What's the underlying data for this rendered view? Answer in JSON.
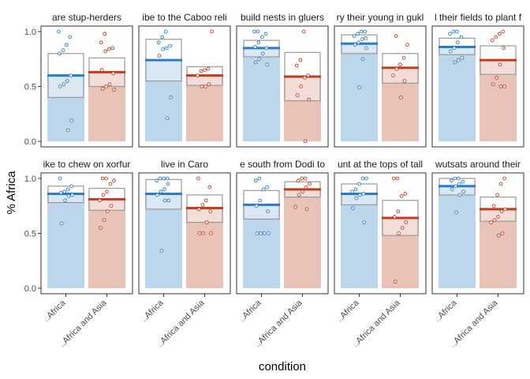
{
  "chart_data": {
    "type": "bar",
    "xlabel": "condition",
    "ylabel": "% Africa",
    "ylim": [
      0,
      1
    ],
    "y_ticks": [
      "0.0",
      "0.5",
      "1.0"
    ],
    "categories": [
      "..Africa",
      "..Africa and Asia"
    ],
    "colors": {
      "africa_fill": "#bcd6ec",
      "africa_line": "#2b7bca",
      "asia_fill": "#e9c2b8",
      "asia_line": "#c23b1c",
      "box_stroke": "#999999",
      "frame": "#333333"
    },
    "panels": [
      {
        "title": "are stup-herders",
        "series": [
          {
            "name": "..Africa",
            "mean": 0.6,
            "ci": [
              0.4,
              0.8
            ],
            "points": [
              1.0,
              0.95,
              0.88,
              0.83,
              0.8,
              0.6,
              0.55,
              0.52,
              0.5,
              0.19,
              0.1
            ]
          },
          {
            "name": "..Africa and Asia",
            "mean": 0.63,
            "ci": [
              0.5,
              0.76
            ],
            "points": [
              0.98,
              0.9,
              0.85,
              0.84,
              0.82,
              0.65,
              0.62,
              0.52,
              0.5,
              0.48,
              0.47
            ]
          }
        ]
      },
      {
        "title": "ibe to the Caboo reli",
        "series": [
          {
            "name": "..Africa",
            "mean": 0.74,
            "ci": [
              0.55,
              0.93
            ],
            "points": [
              1.0,
              0.95,
              0.9,
              0.87,
              0.85,
              0.84,
              0.78,
              0.4,
              0.21
            ]
          },
          {
            "name": "..Africa and Asia",
            "mean": 0.6,
            "ci": [
              0.51,
              0.68
            ],
            "points": [
              1.0,
              0.66,
              0.65,
              0.64,
              0.6,
              0.52,
              0.5,
              0.5
            ]
          }
        ]
      },
      {
        "title": "build nests in gluers",
        "series": [
          {
            "name": "..Africa",
            "mean": 0.85,
            "ci": [
              0.77,
              0.92
            ],
            "points": [
              1.0,
              1.0,
              0.98,
              0.95,
              0.9,
              0.86,
              0.85,
              0.8,
              0.75,
              0.72,
              0.7
            ]
          },
          {
            "name": "..Africa and Asia",
            "mean": 0.59,
            "ci": [
              0.37,
              0.81
            ],
            "points": [
              1.0,
              0.74,
              0.69,
              0.6,
              0.58,
              0.5,
              0.42,
              0.38,
              0.0
            ]
          }
        ]
      },
      {
        "title": "ry their young in gukl",
        "series": [
          {
            "name": "..Africa",
            "mean": 0.89,
            "ci": [
              0.8,
              0.97
            ],
            "points": [
              1.0,
              1.0,
              0.98,
              0.96,
              0.94,
              0.93,
              0.9,
              0.88,
              0.85,
              0.75,
              0.49
            ]
          },
          {
            "name": "..Africa and Asia",
            "mean": 0.67,
            "ci": [
              0.53,
              0.8
            ],
            "points": [
              0.96,
              0.88,
              0.76,
              0.7,
              0.66,
              0.6,
              0.55,
              0.4
            ]
          }
        ]
      },
      {
        "title": "l their fields to plant f",
        "series": [
          {
            "name": "..Africa",
            "mean": 0.86,
            "ci": [
              0.79,
              0.94
            ],
            "points": [
              1.0,
              1.0,
              0.98,
              0.95,
              0.9,
              0.85,
              0.82,
              0.76,
              0.74,
              0.72
            ]
          },
          {
            "name": "..Africa and Asia",
            "mean": 0.74,
            "ci": [
              0.61,
              0.87
            ],
            "points": [
              1.0,
              0.98,
              0.95,
              0.92,
              0.85,
              0.7,
              0.58,
              0.52,
              0.5,
              0.5
            ]
          }
        ]
      },
      {
        "title": "ike to chew on xorfur",
        "series": [
          {
            "name": "..Africa",
            "mean": 0.86,
            "ci": [
              0.78,
              0.93
            ],
            "points": [
              1.0,
              0.93,
              0.9,
              0.88,
              0.87,
              0.85,
              0.84,
              0.8,
              0.59
            ]
          },
          {
            "name": "..Africa and Asia",
            "mean": 0.81,
            "ci": [
              0.71,
              0.91
            ],
            "points": [
              1.0,
              1.0,
              0.98,
              0.95,
              0.88,
              0.85,
              0.8,
              0.75,
              0.7,
              0.62,
              0.55
            ]
          }
        ]
      },
      {
        "title": "live in Caro",
        "series": [
          {
            "name": "..Africa",
            "mean": 0.86,
            "ci": [
              0.72,
              0.99
            ],
            "points": [
              1.0,
              1.0,
              1.0,
              0.98,
              0.95,
              0.9,
              0.88,
              0.85,
              0.8,
              0.8,
              0.34
            ]
          },
          {
            "name": "..Africa and Asia",
            "mean": 0.73,
            "ci": [
              0.6,
              0.85
            ],
            "points": [
              1.0,
              0.92,
              0.8,
              0.76,
              0.72,
              0.7,
              0.6,
              0.5,
              0.5,
              0.5
            ]
          }
        ]
      },
      {
        "title": "e south from Dodi to",
        "series": [
          {
            "name": "..Africa",
            "mean": 0.76,
            "ci": [
              0.63,
              0.89
            ],
            "points": [
              1.0,
              0.98,
              0.92,
              0.9,
              0.8,
              0.75,
              0.7,
              0.5,
              0.5,
              0.5,
              0.5
            ]
          },
          {
            "name": "..Africa and Asia",
            "mean": 0.9,
            "ci": [
              0.83,
              0.97
            ],
            "points": [
              1.0,
              1.0,
              0.98,
              0.95,
              0.92,
              0.88,
              0.85,
              0.74,
              0.72
            ]
          }
        ]
      },
      {
        "title": "unt at the tops of tall",
        "series": [
          {
            "name": "..Africa",
            "mean": 0.86,
            "ci": [
              0.76,
              0.95
            ],
            "points": [
              1.0,
              1.0,
              0.95,
              0.9,
              0.88,
              0.86,
              0.85,
              0.82,
              0.73,
              0.6
            ]
          },
          {
            "name": "..Africa and Asia",
            "mean": 0.64,
            "ci": [
              0.48,
              0.8
            ],
            "points": [
              1.0,
              1.0,
              0.86,
              0.84,
              0.7,
              0.65,
              0.6,
              0.55,
              0.5,
              0.06
            ]
          }
        ]
      },
      {
        "title": "wutsats around their",
        "series": [
          {
            "name": "..Africa",
            "mean": 0.93,
            "ci": [
              0.85,
              1.0
            ],
            "points": [
              1.0,
              1.0,
              0.98,
              0.97,
              0.95,
              0.93,
              0.9,
              0.88,
              0.85,
              0.69
            ]
          },
          {
            "name": "..Africa and Asia",
            "mean": 0.72,
            "ci": [
              0.61,
              0.83
            ],
            "points": [
              1.0,
              0.95,
              0.85,
              0.75,
              0.72,
              0.7,
              0.65,
              0.62,
              0.6,
              0.5,
              0.48
            ]
          }
        ]
      }
    ]
  }
}
